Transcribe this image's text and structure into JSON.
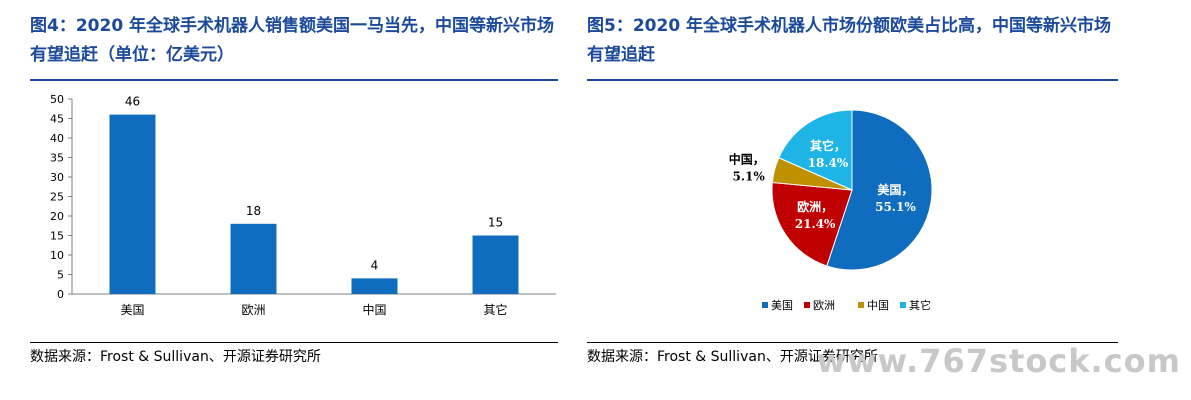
{
  "figure4": {
    "title": "图4：2020 年全球手术机器人销售额美国一马当先，中国等新兴市场有望追赶（单位：亿美元）",
    "source": "数据来源：Frost & Sullivan、开源证券研究所",
    "chart_data": {
      "type": "bar",
      "categories": [
        "美国",
        "欧洲",
        "中国",
        "其它"
      ],
      "values": [
        46,
        18,
        4,
        15
      ],
      "ylim": [
        0,
        50
      ],
      "yticks": [
        0,
        5,
        10,
        15,
        20,
        25,
        30,
        35,
        40,
        45,
        50
      ],
      "color": "#0f6cbf",
      "grid": false,
      "title": "",
      "xlabel": "",
      "ylabel": ""
    }
  },
  "figure5": {
    "title": "图5：2020 年全球手术机器人市场份额欧美占比高，中国等新兴市场有望追赶",
    "source": "数据来源：Frost & Sullivan、开源证券研究所",
    "chart_data": {
      "type": "pie",
      "slices": [
        {
          "label": "美国",
          "value": 55.1,
          "display": "55.1%",
          "color": "#0f6cbf"
        },
        {
          "label": "欧洲",
          "value": 21.4,
          "display": "21.4%",
          "color": "#c00000"
        },
        {
          "label": "中国",
          "value": 5.1,
          "display": "5.1%",
          "color": "#bf9000"
        },
        {
          "label": "其它",
          "value": 18.4,
          "display": "18.4%",
          "color": "#1fb4e6"
        }
      ],
      "legend": {
        "placement": "bottom",
        "items": [
          "美国",
          "欧洲",
          "中国",
          "其它"
        ]
      }
    }
  },
  "watermark": "www.767stock.com"
}
